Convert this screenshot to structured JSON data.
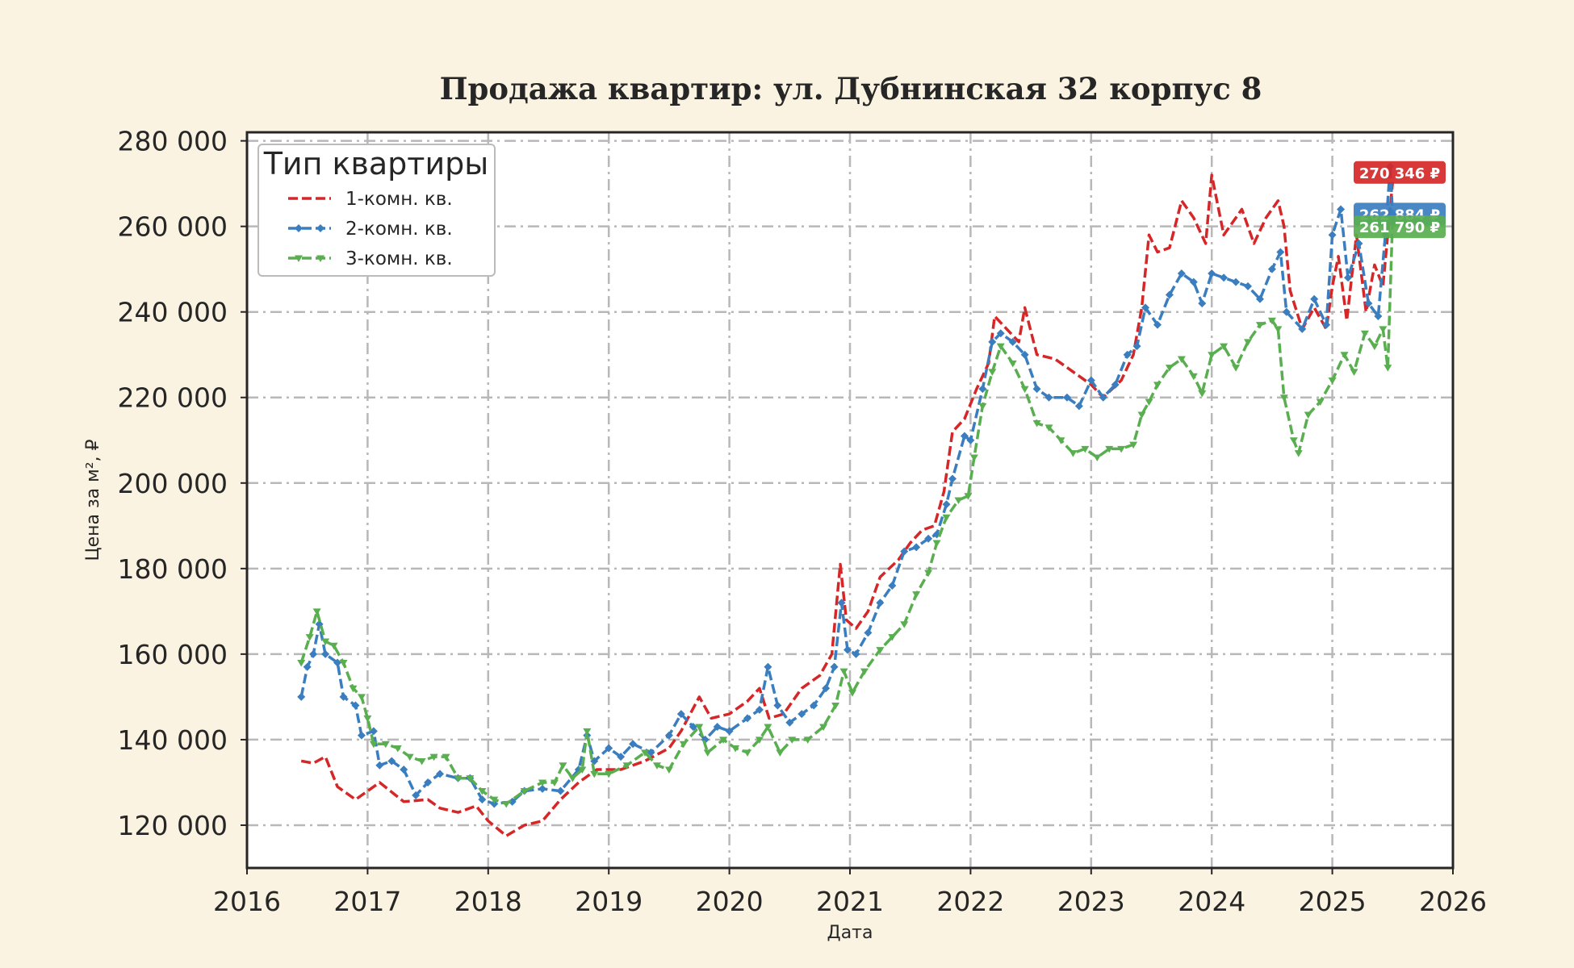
{
  "chart_data": {
    "type": "line",
    "title": "Продажа квартир: ул. Дубнинская 32 корпус 8",
    "xlabel": "Дата",
    "ylabel": "Цена за м², ₽",
    "xlim": [
      2016.0,
      2026.0
    ],
    "ylim": [
      110000,
      282000
    ],
    "x_ticks": [
      "2016",
      "2017",
      "2018",
      "2019",
      "2020",
      "2021",
      "2022",
      "2023",
      "2024",
      "2025",
      "2026"
    ],
    "y_ticks": [
      "120 000",
      "140 000",
      "160 000",
      "180 000",
      "200 000",
      "220 000",
      "240 000",
      "260 000",
      "280 000"
    ],
    "grid": true,
    "legend": {
      "title": "Тип квартиры",
      "placement": "top-left"
    },
    "series": [
      {
        "name": "1-комн. кв.",
        "color": "#d62728",
        "marker": "none",
        "end_label": "270 346 ₽",
        "points": [
          [
            2016.45,
            135000
          ],
          [
            2016.55,
            134500
          ],
          [
            2016.65,
            136000
          ],
          [
            2016.75,
            129000
          ],
          [
            2016.9,
            126000
          ],
          [
            2017.0,
            128000
          ],
          [
            2017.1,
            130000
          ],
          [
            2017.3,
            125500
          ],
          [
            2017.5,
            126000
          ],
          [
            2017.6,
            124000
          ],
          [
            2017.75,
            123000
          ],
          [
            2017.9,
            124500
          ],
          [
            2018.0,
            121000
          ],
          [
            2018.15,
            117500
          ],
          [
            2018.3,
            120000
          ],
          [
            2018.45,
            121000
          ],
          [
            2018.6,
            126000
          ],
          [
            2018.75,
            130000
          ],
          [
            2018.9,
            133000
          ],
          [
            2019.1,
            133000
          ],
          [
            2019.3,
            135000
          ],
          [
            2019.5,
            138000
          ],
          [
            2019.6,
            142000
          ],
          [
            2019.75,
            150000
          ],
          [
            2019.85,
            145000
          ],
          [
            2020.0,
            146000
          ],
          [
            2020.15,
            149000
          ],
          [
            2020.25,
            152000
          ],
          [
            2020.33,
            145000
          ],
          [
            2020.45,
            146000
          ],
          [
            2020.6,
            152000
          ],
          [
            2020.75,
            155000
          ],
          [
            2020.85,
            160000
          ],
          [
            2020.92,
            181000
          ],
          [
            2020.97,
            168000
          ],
          [
            2021.05,
            166000
          ],
          [
            2021.15,
            170000
          ],
          [
            2021.25,
            178000
          ],
          [
            2021.4,
            182000
          ],
          [
            2021.5,
            186000
          ],
          [
            2021.6,
            189000
          ],
          [
            2021.7,
            190000
          ],
          [
            2021.78,
            198000
          ],
          [
            2021.85,
            212000
          ],
          [
            2021.95,
            215000
          ],
          [
            2022.05,
            222000
          ],
          [
            2022.15,
            228000
          ],
          [
            2022.2,
            239000
          ],
          [
            2022.3,
            236000
          ],
          [
            2022.4,
            233000
          ],
          [
            2022.45,
            241000
          ],
          [
            2022.55,
            230000
          ],
          [
            2022.7,
            229000
          ],
          [
            2022.85,
            226000
          ],
          [
            2023.0,
            223000
          ],
          [
            2023.1,
            220000
          ],
          [
            2023.25,
            224000
          ],
          [
            2023.35,
            230000
          ],
          [
            2023.42,
            241000
          ],
          [
            2023.48,
            258000
          ],
          [
            2023.55,
            254000
          ],
          [
            2023.65,
            255000
          ],
          [
            2023.75,
            266000
          ],
          [
            2023.85,
            262000
          ],
          [
            2023.95,
            256000
          ],
          [
            2024.0,
            272000
          ],
          [
            2024.1,
            258000
          ],
          [
            2024.25,
            264000
          ],
          [
            2024.35,
            256000
          ],
          [
            2024.45,
            262000
          ],
          [
            2024.55,
            266000
          ],
          [
            2024.6,
            260000
          ],
          [
            2024.65,
            245000
          ],
          [
            2024.75,
            236000
          ],
          [
            2024.85,
            241000
          ],
          [
            2024.95,
            236000
          ],
          [
            2025.0,
            246000
          ],
          [
            2025.05,
            253000
          ],
          [
            2025.12,
            238000
          ],
          [
            2025.2,
            258000
          ],
          [
            2025.28,
            240000
          ],
          [
            2025.35,
            251000
          ],
          [
            2025.42,
            246000
          ],
          [
            2025.5,
            270346
          ]
        ]
      },
      {
        "name": "2-комн. кв.",
        "color": "#3a7ebf",
        "marker": "diamond",
        "end_label": "262 884 ₽",
        "points": [
          [
            2016.45,
            150000
          ],
          [
            2016.5,
            157000
          ],
          [
            2016.55,
            160000
          ],
          [
            2016.6,
            167000
          ],
          [
            2016.65,
            160000
          ],
          [
            2016.75,
            158000
          ],
          [
            2016.8,
            150000
          ],
          [
            2016.9,
            148000
          ],
          [
            2016.95,
            141000
          ],
          [
            2017.05,
            142000
          ],
          [
            2017.1,
            134000
          ],
          [
            2017.2,
            135000
          ],
          [
            2017.3,
            133000
          ],
          [
            2017.4,
            127000
          ],
          [
            2017.5,
            130000
          ],
          [
            2017.6,
            132000
          ],
          [
            2017.75,
            131000
          ],
          [
            2017.85,
            131000
          ],
          [
            2017.95,
            126000
          ],
          [
            2018.05,
            125000
          ],
          [
            2018.2,
            125500
          ],
          [
            2018.3,
            128000
          ],
          [
            2018.45,
            128500
          ],
          [
            2018.6,
            128000
          ],
          [
            2018.75,
            133000
          ],
          [
            2018.82,
            141000
          ],
          [
            2018.88,
            135000
          ],
          [
            2019.0,
            138000
          ],
          [
            2019.1,
            136000
          ],
          [
            2019.2,
            139000
          ],
          [
            2019.35,
            137000
          ],
          [
            2019.5,
            141000
          ],
          [
            2019.6,
            146000
          ],
          [
            2019.7,
            143000
          ],
          [
            2019.8,
            140000
          ],
          [
            2019.9,
            143000
          ],
          [
            2020.0,
            142000
          ],
          [
            2020.15,
            145000
          ],
          [
            2020.25,
            147000
          ],
          [
            2020.32,
            157000
          ],
          [
            2020.4,
            148000
          ],
          [
            2020.5,
            144000
          ],
          [
            2020.6,
            146000
          ],
          [
            2020.7,
            148000
          ],
          [
            2020.8,
            152000
          ],
          [
            2020.87,
            157000
          ],
          [
            2020.93,
            172000
          ],
          [
            2020.98,
            161000
          ],
          [
            2021.05,
            160000
          ],
          [
            2021.15,
            165000
          ],
          [
            2021.25,
            172000
          ],
          [
            2021.35,
            176000
          ],
          [
            2021.45,
            184000
          ],
          [
            2021.55,
            185000
          ],
          [
            2021.65,
            187000
          ],
          [
            2021.72,
            188000
          ],
          [
            2021.8,
            195000
          ],
          [
            2021.85,
            201000
          ],
          [
            2021.95,
            211000
          ],
          [
            2022.0,
            210000
          ],
          [
            2022.1,
            222000
          ],
          [
            2022.18,
            233000
          ],
          [
            2022.25,
            235000
          ],
          [
            2022.35,
            233000
          ],
          [
            2022.45,
            230000
          ],
          [
            2022.55,
            222000
          ],
          [
            2022.65,
            220000
          ],
          [
            2022.8,
            220000
          ],
          [
            2022.9,
            218000
          ],
          [
            2023.0,
            224000
          ],
          [
            2023.1,
            220000
          ],
          [
            2023.2,
            223000
          ],
          [
            2023.3,
            230000
          ],
          [
            2023.38,
            232000
          ],
          [
            2023.45,
            241000
          ],
          [
            2023.55,
            237000
          ],
          [
            2023.65,
            244000
          ],
          [
            2023.75,
            249000
          ],
          [
            2023.85,
            247000
          ],
          [
            2023.92,
            242000
          ],
          [
            2024.0,
            249000
          ],
          [
            2024.1,
            248000
          ],
          [
            2024.2,
            247000
          ],
          [
            2024.3,
            246000
          ],
          [
            2024.4,
            243000
          ],
          [
            2024.5,
            250000
          ],
          [
            2024.57,
            254000
          ],
          [
            2024.62,
            240000
          ],
          [
            2024.75,
            236000
          ],
          [
            2024.85,
            243000
          ],
          [
            2024.95,
            237000
          ],
          [
            2025.0,
            258000
          ],
          [
            2025.07,
            264000
          ],
          [
            2025.13,
            248000
          ],
          [
            2025.22,
            256000
          ],
          [
            2025.3,
            242000
          ],
          [
            2025.38,
            239000
          ],
          [
            2025.44,
            258000
          ],
          [
            2025.48,
            274000
          ],
          [
            2025.5,
            262884
          ]
        ]
      },
      {
        "name": "3-комн. кв.",
        "color": "#59ae4f",
        "marker": "triangle-down",
        "end_label": "261 790 ₽",
        "points": [
          [
            2016.45,
            158000
          ],
          [
            2016.52,
            164000
          ],
          [
            2016.58,
            170000
          ],
          [
            2016.65,
            163000
          ],
          [
            2016.72,
            162000
          ],
          [
            2016.8,
            158000
          ],
          [
            2016.88,
            152000
          ],
          [
            2016.95,
            150000
          ],
          [
            2017.0,
            145000
          ],
          [
            2017.05,
            139000
          ],
          [
            2017.15,
            139000
          ],
          [
            2017.25,
            138000
          ],
          [
            2017.35,
            136000
          ],
          [
            2017.45,
            135000
          ],
          [
            2017.55,
            136000
          ],
          [
            2017.65,
            136000
          ],
          [
            2017.75,
            131000
          ],
          [
            2017.85,
            131000
          ],
          [
            2017.95,
            128000
          ],
          [
            2018.05,
            126000
          ],
          [
            2018.15,
            125000
          ],
          [
            2018.3,
            128000
          ],
          [
            2018.45,
            130000
          ],
          [
            2018.55,
            130000
          ],
          [
            2018.62,
            134000
          ],
          [
            2018.7,
            131000
          ],
          [
            2018.78,
            133000
          ],
          [
            2018.82,
            142000
          ],
          [
            2018.88,
            132000
          ],
          [
            2019.0,
            132000
          ],
          [
            2019.15,
            134000
          ],
          [
            2019.3,
            137000
          ],
          [
            2019.4,
            134000
          ],
          [
            2019.5,
            133000
          ],
          [
            2019.62,
            139000
          ],
          [
            2019.75,
            143000
          ],
          [
            2019.82,
            137000
          ],
          [
            2019.95,
            140000
          ],
          [
            2020.05,
            138000
          ],
          [
            2020.15,
            137000
          ],
          [
            2020.25,
            140000
          ],
          [
            2020.32,
            143000
          ],
          [
            2020.42,
            137000
          ],
          [
            2020.52,
            140000
          ],
          [
            2020.65,
            140000
          ],
          [
            2020.78,
            143000
          ],
          [
            2020.88,
            148000
          ],
          [
            2020.95,
            156000
          ],
          [
            2021.02,
            151000
          ],
          [
            2021.12,
            156000
          ],
          [
            2021.25,
            161000
          ],
          [
            2021.35,
            164000
          ],
          [
            2021.45,
            167000
          ],
          [
            2021.55,
            174000
          ],
          [
            2021.65,
            179000
          ],
          [
            2021.72,
            186000
          ],
          [
            2021.8,
            192000
          ],
          [
            2021.9,
            196000
          ],
          [
            2021.98,
            197000
          ],
          [
            2022.03,
            206000
          ],
          [
            2022.1,
            218000
          ],
          [
            2022.18,
            226000
          ],
          [
            2022.25,
            232000
          ],
          [
            2022.35,
            228000
          ],
          [
            2022.45,
            222000
          ],
          [
            2022.55,
            214000
          ],
          [
            2022.65,
            213000
          ],
          [
            2022.75,
            210000
          ],
          [
            2022.85,
            207000
          ],
          [
            2022.95,
            208000
          ],
          [
            2023.05,
            206000
          ],
          [
            2023.15,
            208000
          ],
          [
            2023.25,
            208000
          ],
          [
            2023.35,
            209000
          ],
          [
            2023.42,
            216000
          ],
          [
            2023.48,
            219000
          ],
          [
            2023.55,
            223000
          ],
          [
            2023.65,
            227000
          ],
          [
            2023.75,
            229000
          ],
          [
            2023.85,
            225000
          ],
          [
            2023.92,
            221000
          ],
          [
            2024.0,
            230000
          ],
          [
            2024.1,
            232000
          ],
          [
            2024.2,
            227000
          ],
          [
            2024.3,
            233000
          ],
          [
            2024.4,
            237000
          ],
          [
            2024.5,
            238000
          ],
          [
            2024.55,
            236000
          ],
          [
            2024.6,
            220000
          ],
          [
            2024.68,
            210000
          ],
          [
            2024.72,
            207000
          ],
          [
            2024.8,
            216000
          ],
          [
            2024.9,
            219000
          ],
          [
            2025.0,
            224000
          ],
          [
            2025.1,
            230000
          ],
          [
            2025.18,
            226000
          ],
          [
            2025.27,
            235000
          ],
          [
            2025.35,
            232000
          ],
          [
            2025.42,
            236000
          ],
          [
            2025.46,
            227000
          ],
          [
            2025.5,
            261790
          ]
        ]
      }
    ]
  }
}
